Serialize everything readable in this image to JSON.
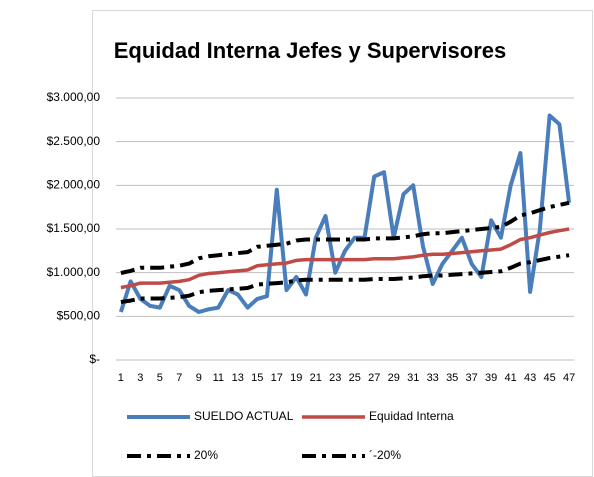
{
  "chart_data": {
    "type": "line",
    "title": "Equidad Interna Jefes y Supervisores",
    "categories": [
      1,
      null,
      3,
      null,
      5,
      null,
      7,
      null,
      9,
      null,
      11,
      null,
      13,
      null,
      15,
      null,
      17,
      null,
      19,
      null,
      21,
      null,
      23,
      null,
      25,
      null,
      27,
      null,
      29,
      null,
      31,
      null,
      33,
      null,
      35,
      null,
      37,
      null,
      39,
      null,
      41,
      null,
      43,
      null,
      45,
      null,
      47
    ],
    "ylim": [
      0,
      3000
    ],
    "yticks": [
      {
        "value": 0,
        "label": "$-"
      },
      {
        "value": 500,
        "label": "$500,00"
      },
      {
        "value": 1000,
        "label": "$1.000,00"
      },
      {
        "value": 1500,
        "label": "$1.500,00"
      },
      {
        "value": 2000,
        "label": "$2.000,00"
      },
      {
        "value": 2500,
        "label": "$2.500,00"
      },
      {
        "value": 3000,
        "label": "$3.000,00"
      }
    ],
    "grid": true,
    "series": [
      {
        "name": "SUELDO ACTUAL",
        "color": "#4a7ebb",
        "values": [
          550,
          900,
          700,
          620,
          600,
          850,
          800,
          620,
          550,
          580,
          600,
          800,
          750,
          600,
          700,
          730,
          1950,
          800,
          950,
          750,
          1400,
          1650,
          1000,
          1250,
          1400,
          1400,
          2100,
          2150,
          1400,
          1900,
          2000,
          1300,
          870,
          1100,
          1250,
          1400,
          1100,
          950,
          1600,
          1400,
          2000,
          2370,
          780,
          1500,
          2800,
          2700,
          1800
        ]
      },
      {
        "name": "Equidad Interna",
        "color": "#be4b48",
        "values": [
          830,
          850,
          880,
          880,
          880,
          890,
          900,
          920,
          970,
          990,
          1000,
          1010,
          1020,
          1030,
          1080,
          1090,
          1100,
          1110,
          1140,
          1150,
          1150,
          1150,
          1150,
          1150,
          1150,
          1150,
          1160,
          1160,
          1160,
          1170,
          1180,
          1200,
          1210,
          1210,
          1220,
          1230,
          1240,
          1250,
          1260,
          1270,
          1320,
          1380,
          1400,
          1430,
          1460,
          1480,
          1500
        ]
      },
      {
        "name": "20%",
        "color": "#000000",
        "values": [
          996,
          1020,
          1056,
          1056,
          1056,
          1068,
          1080,
          1104,
          1164,
          1188,
          1200,
          1212,
          1224,
          1236,
          1296,
          1308,
          1320,
          1332,
          1368,
          1380,
          1380,
          1380,
          1380,
          1380,
          1380,
          1380,
          1392,
          1392,
          1392,
          1404,
          1416,
          1440,
          1452,
          1452,
          1464,
          1476,
          1488,
          1500,
          1512,
          1524,
          1584,
          1656,
          1680,
          1716,
          1752,
          1776,
          1800
        ]
      },
      {
        "name": "´-20%",
        "color": "#000000",
        "values": [
          664,
          680,
          704,
          704,
          704,
          712,
          720,
          736,
          776,
          792,
          800,
          808,
          816,
          824,
          864,
          872,
          880,
          888,
          912,
          920,
          920,
          920,
          920,
          920,
          920,
          920,
          928,
          928,
          928,
          936,
          944,
          960,
          968,
          968,
          976,
          984,
          992,
          1000,
          1008,
          1016,
          1056,
          1104,
          1120,
          1144,
          1168,
          1184,
          1200
        ]
      }
    ]
  }
}
